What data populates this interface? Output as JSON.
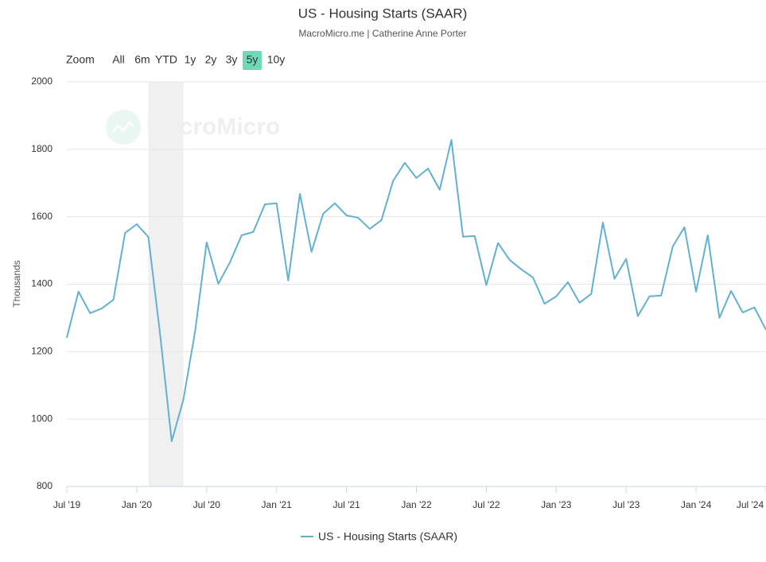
{
  "chart_data": {
    "type": "line",
    "title": "US - Housing Starts (SAAR)",
    "subtitle": "MacroMicro.me | Catherine Anne Porter",
    "watermark": "MacroMicro",
    "zoom_label": "Zoom",
    "range_buttons": [
      "All",
      "6m",
      "YTD",
      "1y",
      "2y",
      "3y",
      "5y",
      "10y"
    ],
    "selected_button": "5y",
    "y_label": "Thousands",
    "x": [
      "2019-07",
      "2019-08",
      "2019-09",
      "2019-10",
      "2019-11",
      "2019-12",
      "2020-01",
      "2020-02",
      "2020-03",
      "2020-04",
      "2020-05",
      "2020-06",
      "2020-07",
      "2020-08",
      "2020-09",
      "2020-10",
      "2020-11",
      "2020-12",
      "2021-01",
      "2021-02",
      "2021-03",
      "2021-04",
      "2021-05",
      "2021-06",
      "2021-07",
      "2021-08",
      "2021-09",
      "2021-10",
      "2021-11",
      "2021-12",
      "2022-01",
      "2022-02",
      "2022-03",
      "2022-04",
      "2022-05",
      "2022-06",
      "2022-07",
      "2022-08",
      "2022-09",
      "2022-10",
      "2022-11",
      "2022-12",
      "2023-01",
      "2023-02",
      "2023-03",
      "2023-04",
      "2023-05",
      "2023-06",
      "2023-07",
      "2023-08",
      "2023-09",
      "2023-10",
      "2023-11",
      "2023-12",
      "2024-01",
      "2024-02",
      "2024-03",
      "2024-04",
      "2024-05",
      "2024-06",
      "2024-07"
    ],
    "series": [
      {
        "name": "US - Housing Starts (SAAR)",
        "color": "#62b0d2",
        "values": [
          1241,
          1378,
          1314,
          1328,
          1354,
          1552,
          1578,
          1540,
          1253,
          934,
          1057,
          1258,
          1524,
          1401,
          1465,
          1545,
          1555,
          1637,
          1640,
          1411,
          1668,
          1496,
          1609,
          1640,
          1604,
          1597,
          1564,
          1590,
          1706,
          1760,
          1715,
          1743,
          1680,
          1828,
          1541,
          1543,
          1397,
          1522,
          1472,
          1444,
          1420,
          1342,
          1364,
          1406,
          1345,
          1371,
          1583,
          1416,
          1475,
          1305,
          1364,
          1366,
          1512,
          1569,
          1378,
          1545,
          1300,
          1380,
          1316,
          1331,
          1265
        ]
      }
    ],
    "bands": [
      {
        "from": "2020-02",
        "to": "2020-05",
        "color": "#f0f0f0"
      }
    ],
    "xlim": [
      "2019-07",
      "2024-07"
    ],
    "xticks": [
      {
        "value": "2019-07",
        "label": "Jul '19"
      },
      {
        "value": "2020-01",
        "label": "Jan '20"
      },
      {
        "value": "2020-07",
        "label": "Jul '20"
      },
      {
        "value": "2021-01",
        "label": "Jan '21"
      },
      {
        "value": "2021-07",
        "label": "Jul '21"
      },
      {
        "value": "2022-01",
        "label": "Jan '22"
      },
      {
        "value": "2022-07",
        "label": "Jul '22"
      },
      {
        "value": "2023-01",
        "label": "Jan '23"
      },
      {
        "value": "2023-07",
        "label": "Jul '23"
      },
      {
        "value": "2024-01",
        "label": "Jan '24"
      },
      {
        "value": "2024-07",
        "label": "Jul '24"
      }
    ],
    "ylim": [
      800,
      2000
    ],
    "yticks": [
      800,
      1000,
      1200,
      1400,
      1600,
      1800,
      2000
    ],
    "grid": true
  }
}
